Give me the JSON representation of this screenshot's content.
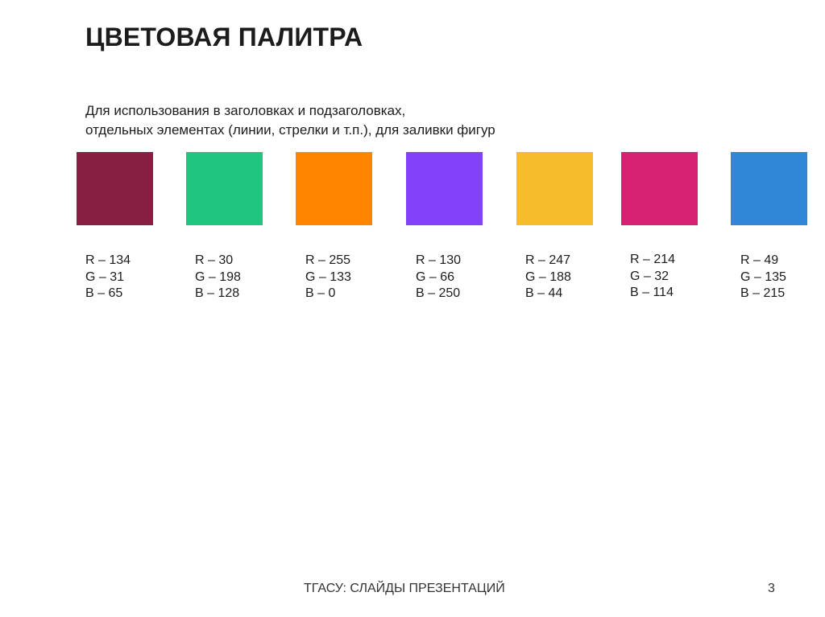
{
  "slide": {
    "title": "ЦВЕТОВАЯ ПАЛИТРА",
    "subtitle_line1": "Для использования в заголовках и подзаголовках,",
    "subtitle_line2": "отдельных элементах (линии, стрелки и т.п.), для заливки фигур",
    "footer": "ТГАСУ: СЛАЙДЫ ПРЕЗЕНТАЦИЙ",
    "page_number": "3"
  },
  "palette": [
    {
      "color": "#861F41",
      "r": "R – 134",
      "g": "G – 31",
      "b": "B – 65"
    },
    {
      "color": "#1EC680",
      "r": "R – 30",
      "g": "G – 198",
      "b": "B – 128"
    },
    {
      "color": "#FF8500",
      "r": "R – 255",
      "g": "G – 133",
      "b": "B – 0"
    },
    {
      "color": "#8242FA",
      "r": "R – 130",
      "g": "G – 66",
      "b": "B – 250"
    },
    {
      "color": "#F7BC2C",
      "r": "R – 247",
      "g": "G – 188",
      "b": "B – 44"
    },
    {
      "color": "#D62072",
      "r": "R – 214",
      "g": "G – 32",
      "b": "B – 114"
    },
    {
      "color": "#3187D7",
      "r": "R – 49",
      "g": "G – 135",
      "b": "B – 215"
    }
  ]
}
